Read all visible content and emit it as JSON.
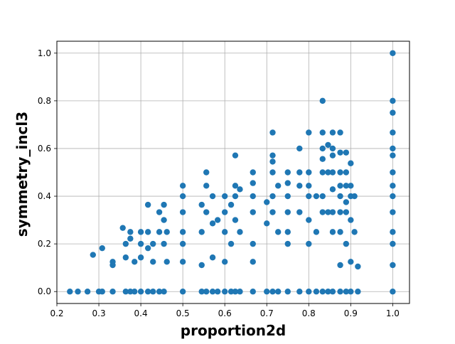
{
  "chart_data": {
    "type": "scatter",
    "title": "",
    "xlabel": "proportion2d",
    "ylabel": "symmetry_incl3",
    "xlim": [
      0.2,
      1.04
    ],
    "ylim": [
      -0.05,
      1.05
    ],
    "xticks": [
      0.2,
      0.3,
      0.4,
      0.5,
      0.6,
      0.7,
      0.8,
      0.9,
      1.0
    ],
    "xtick_labels": [
      "0.2",
      "0.3",
      "0.4",
      "0.5",
      "0.6",
      "0.7",
      "0.8",
      "0.9",
      "1.0"
    ],
    "yticks": [
      0.0,
      0.2,
      0.4,
      0.6,
      0.8,
      1.0
    ],
    "ytick_labels": [
      "0.0",
      "0.2",
      "0.4",
      "0.6",
      "0.8",
      "1.0"
    ],
    "grid": true,
    "marker_color": "#1f77b4",
    "series": [
      {
        "points": [
          [
            0.231,
            0.0
          ],
          [
            0.25,
            0.0
          ],
          [
            0.273,
            0.0
          ],
          [
            0.3,
            0.0
          ],
          [
            0.308,
            0.0
          ],
          [
            0.333,
            0.0
          ],
          [
            0.364,
            0.0
          ],
          [
            0.375,
            0.0
          ],
          [
            0.385,
            0.0
          ],
          [
            0.4,
            0.0
          ],
          [
            0.417,
            0.0
          ],
          [
            0.429,
            0.0
          ],
          [
            0.444,
            0.0
          ],
          [
            0.455,
            0.0
          ],
          [
            0.5,
            0.0
          ],
          [
            0.545,
            0.0
          ],
          [
            0.556,
            0.0
          ],
          [
            0.571,
            0.0
          ],
          [
            0.583,
            0.0
          ],
          [
            0.6,
            0.0
          ],
          [
            0.615,
            0.0
          ],
          [
            0.625,
            0.0
          ],
          [
            0.636,
            0.0
          ],
          [
            0.667,
            0.0
          ],
          [
            0.7,
            0.0
          ],
          [
            0.714,
            0.0
          ],
          [
            0.727,
            0.0
          ],
          [
            0.75,
            0.0
          ],
          [
            0.778,
            0.0
          ],
          [
            0.8,
            0.0
          ],
          [
            0.818,
            0.0
          ],
          [
            0.833,
            0.0
          ],
          [
            0.846,
            0.0
          ],
          [
            0.857,
            0.0
          ],
          [
            0.875,
            0.0
          ],
          [
            0.889,
            0.0
          ],
          [
            0.9,
            0.0
          ],
          [
            0.917,
            0.0
          ],
          [
            1.0,
            0.0
          ],
          [
            0.286,
            0.154
          ],
          [
            0.308,
            0.182
          ],
          [
            0.333,
            0.125
          ],
          [
            0.333,
            0.111
          ],
          [
            0.357,
            0.267
          ],
          [
            0.364,
            0.2
          ],
          [
            0.364,
            0.143
          ],
          [
            0.375,
            0.222
          ],
          [
            0.375,
            0.25
          ],
          [
            0.385,
            0.125
          ],
          [
            0.4,
            0.2
          ],
          [
            0.4,
            0.25
          ],
          [
            0.4,
            0.143
          ],
          [
            0.417,
            0.182
          ],
          [
            0.417,
            0.364
          ],
          [
            0.417,
            0.25
          ],
          [
            0.429,
            0.125
          ],
          [
            0.429,
            0.2
          ],
          [
            0.444,
            0.25
          ],
          [
            0.444,
            0.333
          ],
          [
            0.455,
            0.364
          ],
          [
            0.455,
            0.3
          ],
          [
            0.455,
            0.2
          ],
          [
            0.462,
            0.125
          ],
          [
            0.462,
            0.25
          ],
          [
            0.5,
            0.444
          ],
          [
            0.5,
            0.4
          ],
          [
            0.5,
            0.333
          ],
          [
            0.5,
            0.25
          ],
          [
            0.5,
            0.2
          ],
          [
            0.5,
            0.125
          ],
          [
            0.545,
            0.364
          ],
          [
            0.545,
            0.25
          ],
          [
            0.545,
            0.111
          ],
          [
            0.556,
            0.5
          ],
          [
            0.556,
            0.444
          ],
          [
            0.556,
            0.333
          ],
          [
            0.571,
            0.4
          ],
          [
            0.571,
            0.286
          ],
          [
            0.571,
            0.143
          ],
          [
            0.583,
            0.3
          ],
          [
            0.6,
            0.4
          ],
          [
            0.6,
            0.333
          ],
          [
            0.6,
            0.25
          ],
          [
            0.6,
            0.125
          ],
          [
            0.615,
            0.364
          ],
          [
            0.615,
            0.2
          ],
          [
            0.625,
            0.571
          ],
          [
            0.625,
            0.444
          ],
          [
            0.625,
            0.4
          ],
          [
            0.625,
            0.3
          ],
          [
            0.636,
            0.429
          ],
          [
            0.636,
            0.25
          ],
          [
            0.667,
            0.5
          ],
          [
            0.667,
            0.455
          ],
          [
            0.667,
            0.4
          ],
          [
            0.667,
            0.333
          ],
          [
            0.667,
            0.2
          ],
          [
            0.667,
            0.125
          ],
          [
            0.7,
            0.375
          ],
          [
            0.7,
            0.286
          ],
          [
            0.714,
            0.667
          ],
          [
            0.714,
            0.571
          ],
          [
            0.714,
            0.545
          ],
          [
            0.714,
            0.5
          ],
          [
            0.714,
            0.4
          ],
          [
            0.714,
            0.333
          ],
          [
            0.727,
            0.444
          ],
          [
            0.727,
            0.25
          ],
          [
            0.75,
            0.5
          ],
          [
            0.75,
            0.455
          ],
          [
            0.75,
            0.4
          ],
          [
            0.75,
            0.333
          ],
          [
            0.75,
            0.25
          ],
          [
            0.75,
            0.2
          ],
          [
            0.778,
            0.6
          ],
          [
            0.778,
            0.5
          ],
          [
            0.778,
            0.444
          ],
          [
            0.778,
            0.333
          ],
          [
            0.8,
            0.667
          ],
          [
            0.8,
            0.5
          ],
          [
            0.8,
            0.444
          ],
          [
            0.8,
            0.4
          ],
          [
            0.8,
            0.3
          ],
          [
            0.8,
            0.2
          ],
          [
            0.818,
            0.4
          ],
          [
            0.818,
            0.25
          ],
          [
            0.833,
            0.8
          ],
          [
            0.833,
            0.667
          ],
          [
            0.833,
            0.6
          ],
          [
            0.833,
            0.556
          ],
          [
            0.833,
            0.5
          ],
          [
            0.833,
            0.4
          ],
          [
            0.833,
            0.333
          ],
          [
            0.846,
            0.615
          ],
          [
            0.846,
            0.5
          ],
          [
            0.846,
            0.333
          ],
          [
            0.857,
            0.667
          ],
          [
            0.857,
            0.6
          ],
          [
            0.857,
            0.571
          ],
          [
            0.857,
            0.5
          ],
          [
            0.857,
            0.429
          ],
          [
            0.857,
            0.333
          ],
          [
            0.857,
            0.25
          ],
          [
            0.875,
            0.667
          ],
          [
            0.875,
            0.583
          ],
          [
            0.875,
            0.5
          ],
          [
            0.875,
            0.444
          ],
          [
            0.875,
            0.4
          ],
          [
            0.875,
            0.333
          ],
          [
            0.875,
            0.25
          ],
          [
            0.875,
            0.111
          ],
          [
            0.889,
            0.583
          ],
          [
            0.889,
            0.5
          ],
          [
            0.889,
            0.444
          ],
          [
            0.889,
            0.375
          ],
          [
            0.889,
            0.333
          ],
          [
            0.889,
            0.2
          ],
          [
            0.9,
            0.538
          ],
          [
            0.9,
            0.444
          ],
          [
            0.9,
            0.4
          ],
          [
            0.9,
            0.3
          ],
          [
            0.9,
            0.125
          ],
          [
            0.909,
            0.4
          ],
          [
            0.909,
            0.25
          ],
          [
            0.917,
            0.105
          ],
          [
            1.0,
            1.0
          ],
          [
            1.0,
            0.8
          ],
          [
            1.0,
            0.75
          ],
          [
            1.0,
            0.667
          ],
          [
            1.0,
            0.6
          ],
          [
            1.0,
            0.571
          ],
          [
            1.0,
            0.5
          ],
          [
            1.0,
            0.444
          ],
          [
            1.0,
            0.4
          ],
          [
            1.0,
            0.333
          ],
          [
            1.0,
            0.25
          ],
          [
            1.0,
            0.2
          ],
          [
            1.0,
            0.111
          ]
        ]
      }
    ]
  }
}
